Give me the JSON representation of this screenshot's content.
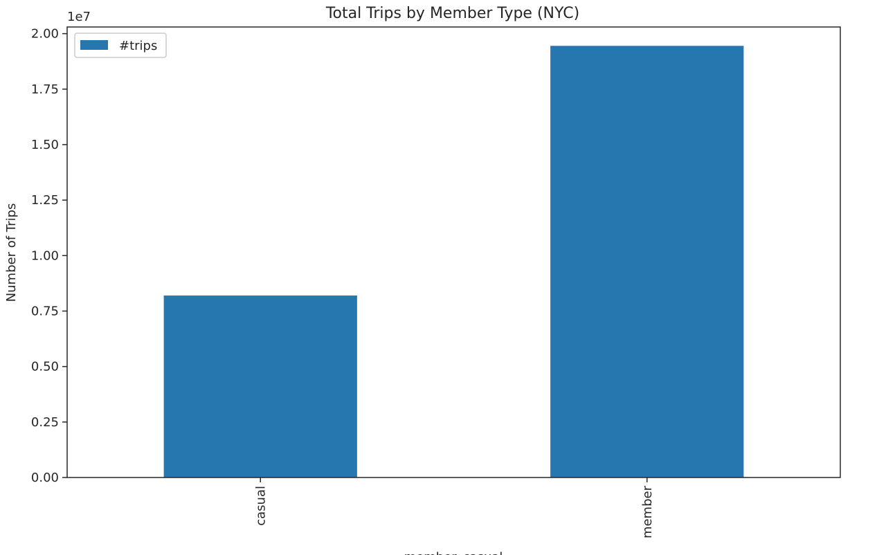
{
  "chart_data": {
    "type": "bar",
    "title": "Total Trips by Member Type (NYC)",
    "xlabel": "member_casual",
    "ylabel": "Number of Trips",
    "offset_label": "1e7",
    "categories": [
      "casual",
      "member"
    ],
    "series": [
      {
        "name": "#trips",
        "values": [
          8200000,
          19450000
        ],
        "color": "#2677b0"
      }
    ],
    "ylim": [
      0,
      20300000
    ],
    "y_ticks": [
      0,
      2500000,
      5000000,
      7500000,
      10000000,
      12500000,
      15000000,
      17500000,
      20000000
    ],
    "y_tick_labels": [
      "0.00",
      "0.25",
      "0.50",
      "0.75",
      "1.00",
      "1.25",
      "1.50",
      "1.75",
      "2.00"
    ],
    "x_tick_rotation": "vertical",
    "grid": false,
    "legend": {
      "placement": "top-left",
      "entries": [
        "#trips"
      ]
    }
  }
}
